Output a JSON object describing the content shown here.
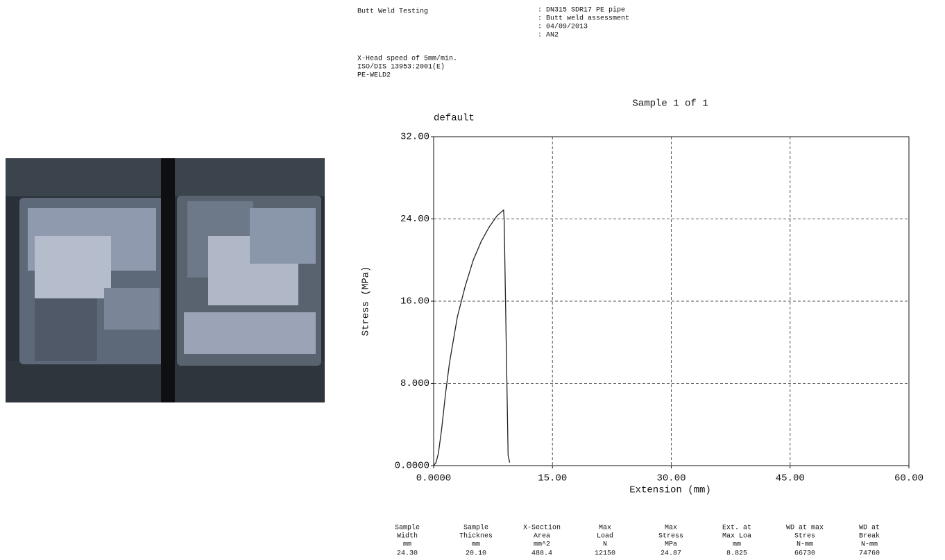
{
  "header": {
    "title": "Butt Weld Testing",
    "details": [
      ": DN315 SDR17 PE pipe",
      ": Butt weld assessment",
      ": 04/09/2013",
      ": AN2"
    ],
    "notes": [
      "X-Head speed of 5mm/min.",
      "ISO/DIS 13953:2001(E)",
      "PE-WELD2"
    ]
  },
  "chart_data": {
    "type": "line",
    "title": "Sample 1 of 1",
    "subtitle": "default",
    "x_label": "Extension (mm)",
    "y_label": "Stress (MPa)",
    "x": [
      0,
      0.3,
      0.6,
      1.0,
      1.5,
      2.0,
      3.0,
      4.0,
      5.0,
      6.0,
      7.0,
      8.0,
      8.825,
      8.9,
      9.4,
      9.6
    ],
    "series": [
      {
        "color": "#222222",
        "values": [
          0,
          0.3,
          1.2,
          3.5,
          7.0,
          10.0,
          14.5,
          17.5,
          20.0,
          21.8,
          23.2,
          24.3,
          24.87,
          24.0,
          1.0,
          0.3
        ]
      }
    ],
    "xlim": [
      0,
      60
    ],
    "ylim": [
      0,
      32
    ],
    "xticks": [
      {
        "value": 0,
        "label": "0.0000"
      },
      {
        "value": 15,
        "label": "15.00"
      },
      {
        "value": 30,
        "label": "30.00"
      },
      {
        "value": 45,
        "label": "45.00"
      },
      {
        "value": 60,
        "label": "60.00"
      }
    ],
    "yticks": [
      {
        "value": 0,
        "label": "0.0000"
      },
      {
        "value": 8,
        "label": "8.000"
      },
      {
        "value": 16,
        "label": "16.00"
      },
      {
        "value": 24,
        "label": "24.00"
      },
      {
        "value": 32,
        "label": "32.00"
      }
    ],
    "grid": true
  },
  "table": {
    "header_rows": [
      [
        "Sample",
        "Sample",
        "X-Section",
        "Max",
        "Max",
        "Ext. at",
        "WD at max",
        "WD at"
      ],
      [
        "Width",
        "Thicknes",
        "Area",
        "Load",
        "Stress",
        "Max Loa",
        "Stres",
        "Break"
      ],
      [
        "mm",
        "mm",
        "mm^2",
        "N",
        "MPa",
        "mm",
        "N-mm",
        "N-mm"
      ]
    ],
    "values": [
      24.3,
      20.1,
      488.4,
      12150,
      24.87,
      8.825,
      66730,
      74760
    ],
    "value_labels": [
      "24.30",
      "20.10",
      "488.4",
      "12150",
      "24.87",
      "8.825",
      "66730",
      "74760"
    ]
  }
}
